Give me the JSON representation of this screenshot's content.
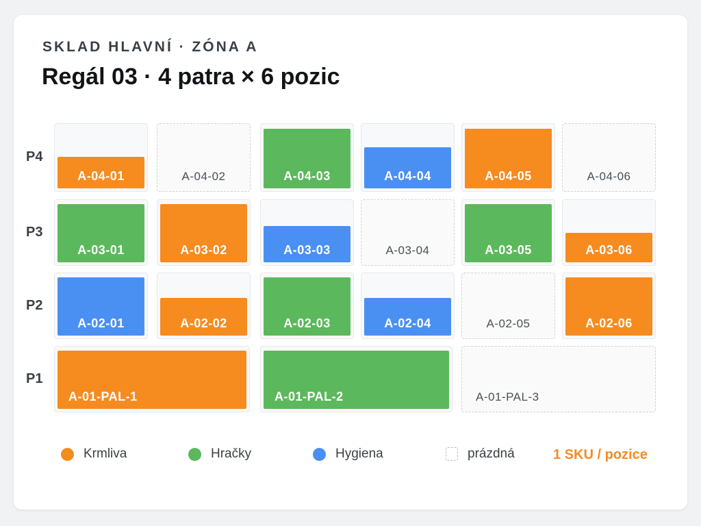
{
  "header": {
    "subtitle": "SKLAD HLAVNÍ · ZÓNA A",
    "title": "Regál 03 · 4 patra × 6 pozic"
  },
  "colors": {
    "krmiva": "#f68b1f",
    "hracky": "#5cb85c",
    "hygiena": "#4a90f2",
    "empty_border": "#cfd2d7",
    "note": "#f68b1f"
  },
  "rows": [
    {
      "label": "P4",
      "slots": [
        {
          "code": "A-04-01",
          "category": "krmiva",
          "fill": 0.5
        },
        {
          "code": "A-04-02",
          "category": "empty",
          "fill": 0
        },
        {
          "code": "A-04-03",
          "category": "hracky",
          "fill": 0.95
        },
        {
          "code": "A-04-04",
          "category": "hygiena",
          "fill": 0.65
        },
        {
          "code": "A-04-05",
          "category": "krmiva",
          "fill": 0.95
        },
        {
          "code": "A-04-06",
          "category": "empty",
          "fill": 0
        }
      ]
    },
    {
      "label": "P3",
      "slots": [
        {
          "code": "A-03-01",
          "category": "hracky",
          "fill": 0.95
        },
        {
          "code": "A-03-02",
          "category": "krmiva",
          "fill": 0.95
        },
        {
          "code": "A-03-03",
          "category": "hygiena",
          "fill": 0.6
        },
        {
          "code": "A-03-04",
          "category": "empty",
          "fill": 0
        },
        {
          "code": "A-03-05",
          "category": "hracky",
          "fill": 0.95
        },
        {
          "code": "A-03-06",
          "category": "krmiva",
          "fill": 0.48
        }
      ]
    },
    {
      "label": "P2",
      "slots": [
        {
          "code": "A-02-01",
          "category": "hygiena",
          "fill": 0.95
        },
        {
          "code": "A-02-02",
          "category": "krmiva",
          "fill": 0.62
        },
        {
          "code": "A-02-03",
          "category": "hracky",
          "fill": 0.95
        },
        {
          "code": "A-02-04",
          "category": "hygiena",
          "fill": 0.62
        },
        {
          "code": "A-02-05",
          "category": "empty",
          "fill": 0
        },
        {
          "code": "A-02-06",
          "category": "krmiva",
          "fill": 0.95
        }
      ]
    },
    {
      "label": "P1",
      "slots": [
        {
          "code": "A-01-PAL-1",
          "category": "krmiva",
          "fill": 0.95
        },
        {
          "code": "A-01-PAL-2",
          "category": "hracky",
          "fill": 0.95
        },
        {
          "code": "A-01-PAL-3",
          "category": "empty",
          "fill": 0
        }
      ]
    }
  ],
  "legend": [
    {
      "label": "Krmliva",
      "category": "krmiva"
    },
    {
      "label": "Hračky",
      "category": "hracky"
    },
    {
      "label": "Hygiena",
      "category": "hygiena"
    },
    {
      "label": "prázdná",
      "category": "empty"
    }
  ],
  "legend_note": "1 SKU / pozice"
}
